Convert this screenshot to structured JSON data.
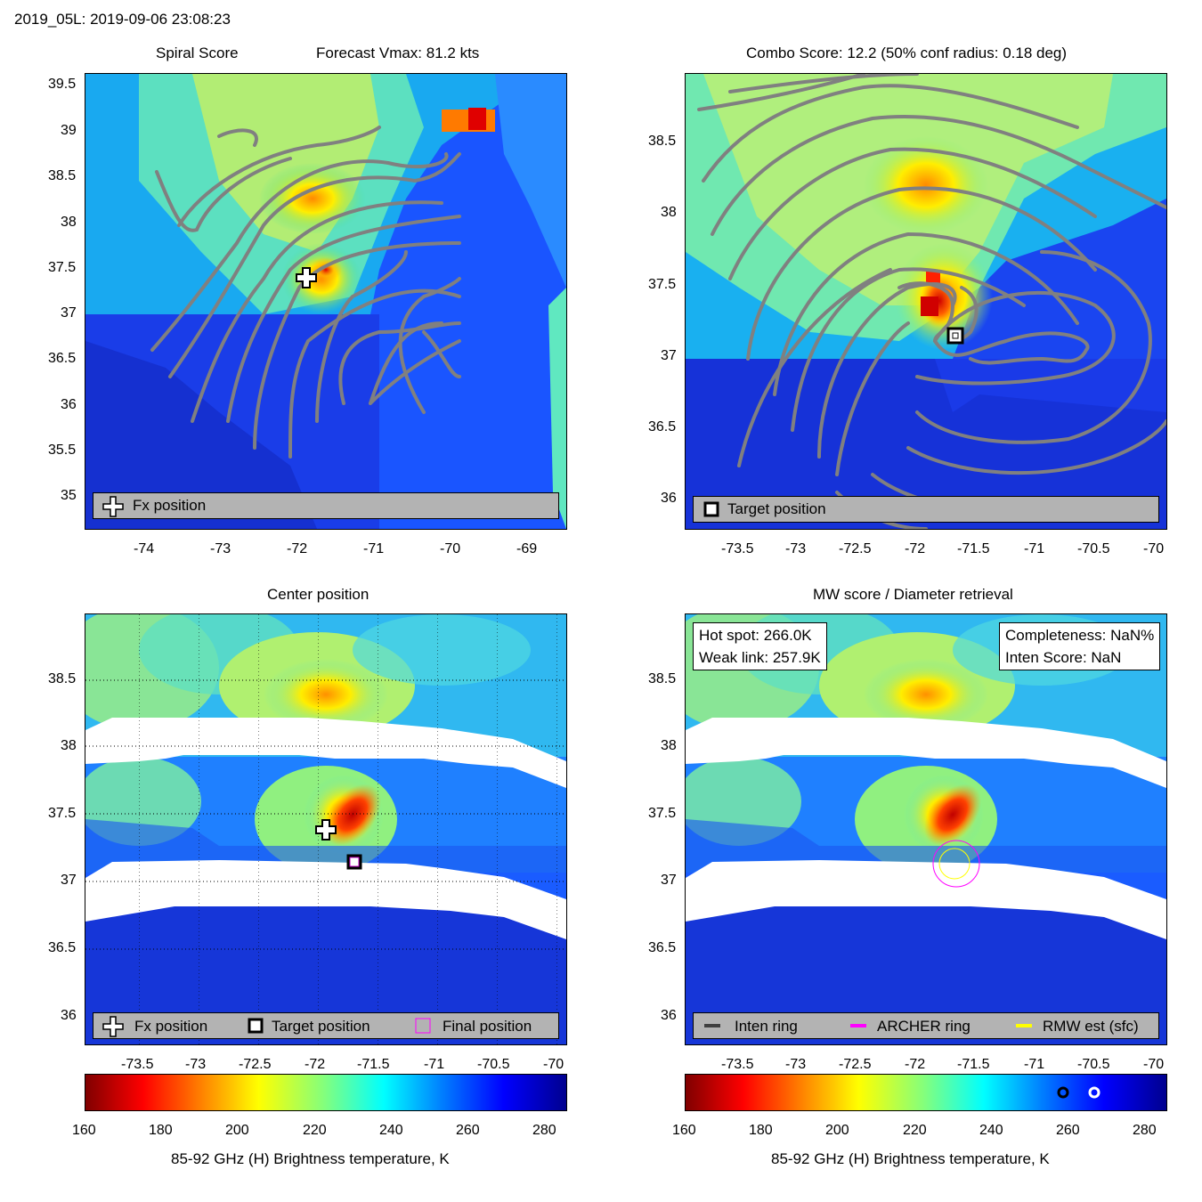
{
  "header": {
    "title": "2019_05L: 2019-09-06 23:08:23"
  },
  "panel1": {
    "title_left": "Spiral Score",
    "title_right": "Forecast Vmax: 81.2 kts",
    "yticks": [
      "39.5",
      "39",
      "38.5",
      "38",
      "37.5",
      "37",
      "36.5",
      "36",
      "35.5",
      "35"
    ],
    "xticks": [
      "-74",
      "-73",
      "-72",
      "-71",
      "-70",
      "-69"
    ],
    "legend": {
      "fx": "Fx position"
    }
  },
  "panel2": {
    "title": "Combo Score: 12.2  (50% conf radius: 0.18 deg)",
    "yticks": [
      "38.5",
      "38",
      "37.5",
      "37",
      "36.5",
      "36"
    ],
    "xticks": [
      "-73.5",
      "-73",
      "-72.5",
      "-72",
      "-71.5",
      "-71",
      "-70.5",
      "-70"
    ],
    "legend": {
      "target": "Target position"
    }
  },
  "panel3": {
    "title": "Center position",
    "yticks": [
      "38.5",
      "38",
      "37.5",
      "37",
      "36.5",
      "36"
    ],
    "xticks": [
      "-73.5",
      "-73",
      "-72.5",
      "-72",
      "-71.5",
      "-71",
      "-70.5",
      "-70"
    ],
    "legend": {
      "fx": "Fx position",
      "target": "Target position",
      "final": "Final position"
    }
  },
  "panel4": {
    "title": "MW score / Diameter retrieval",
    "yticks": [
      "38.5",
      "38",
      "37.5",
      "37",
      "36.5",
      "36"
    ],
    "xticks": [
      "-73.5",
      "-73",
      "-72.5",
      "-72",
      "-71.5",
      "-71",
      "-70.5",
      "-70"
    ],
    "box_left": {
      "line1": "Hot spot: 266.0K",
      "line2": "Weak link: 257.9K"
    },
    "box_right": {
      "line1": "Completeness: NaN%",
      "line2": "Inten Score: NaN"
    },
    "legend": {
      "inten": "Inten ring",
      "archer": "ARCHER ring",
      "rmw": "RMW est (sfc)"
    }
  },
  "colorbar": {
    "ticks": [
      "160",
      "180",
      "200",
      "220",
      "240",
      "260",
      "280"
    ],
    "label": "85-92 GHz (H) Brightness temperature, K"
  },
  "colors": {
    "inten_ring": "#404040",
    "archer_ring": "#ff00ff",
    "rmw": "#ffff00",
    "contour": "#808080",
    "legend_bg": "#b3b3b3"
  },
  "chart_data": [
    {
      "type": "heatmap",
      "title": "Spiral Score",
      "xlim": [
        -74.8,
        -68.6
      ],
      "ylim": [
        34.6,
        39.7
      ],
      "markers": [
        {
          "name": "Fx position",
          "x": -71.85,
          "y": 37.4
        }
      ]
    },
    {
      "type": "heatmap",
      "title": "Combo Score: 12.2  (50% conf radius: 0.18 deg)",
      "xlim": [
        -73.9,
        -70.0
      ],
      "ylim": [
        35.8,
        38.9
      ],
      "markers": [
        {
          "name": "Target position",
          "x": -71.7,
          "y": 37.15
        }
      ]
    },
    {
      "type": "heatmap",
      "title": "Center position",
      "xlim": [
        -73.9,
        -70.0
      ],
      "ylim": [
        35.8,
        38.9
      ],
      "markers": [
        {
          "name": "Fx position",
          "x": -71.95,
          "y": 37.38
        },
        {
          "name": "Target position",
          "x": -71.7,
          "y": 37.15
        },
        {
          "name": "Final position",
          "x": -71.7,
          "y": 37.15
        }
      ]
    },
    {
      "type": "heatmap",
      "title": "MW score / Diameter retrieval",
      "xlim": [
        -73.9,
        -70.0
      ],
      "ylim": [
        35.8,
        38.9
      ],
      "rings": [
        {
          "name": "ARCHER ring",
          "x": -71.7,
          "y": 37.15
        },
        {
          "name": "RMW est (sfc)",
          "x": -71.7,
          "y": 37.13
        }
      ]
    }
  ]
}
